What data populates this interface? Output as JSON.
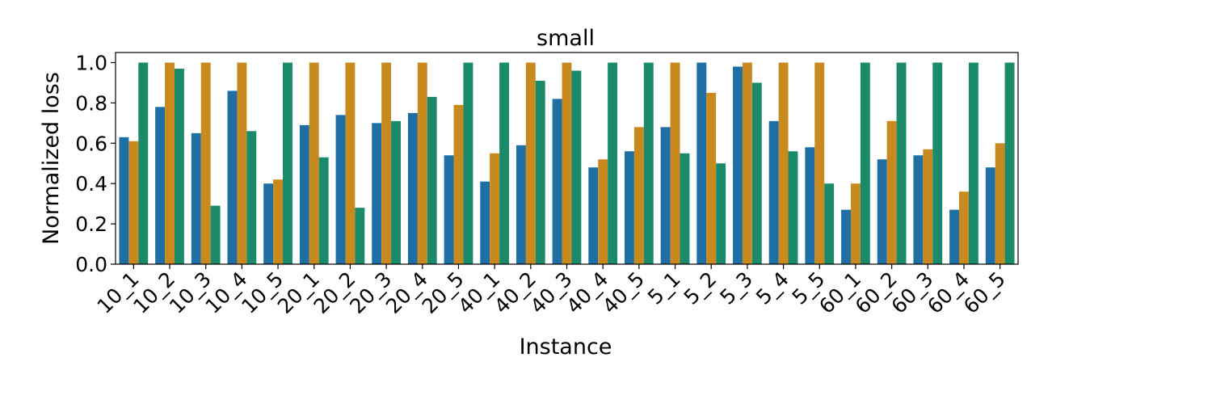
{
  "chart_data": {
    "type": "bar",
    "title": "small",
    "xlabel": "Instance",
    "ylabel": "Normalized loss",
    "ylim": [
      0,
      1.05
    ],
    "yticks": [
      "0.0",
      "0.2",
      "0.4",
      "0.6",
      "0.8",
      "1.0"
    ],
    "legend": "none",
    "grid": false,
    "categories": [
      "10_1",
      "10_2",
      "10_3",
      "10_4",
      "10_5",
      "20_1",
      "20_2",
      "20_3",
      "20_4",
      "20_5",
      "40_1",
      "40_2",
      "40_3",
      "40_4",
      "40_5",
      "5_1",
      "5_2",
      "5_3",
      "5_4",
      "5_5",
      "60_1",
      "60_2",
      "60_3",
      "60_4",
      "60_5"
    ],
    "series": [
      {
        "color": "#1f6fa5",
        "values": [
          0.63,
          0.78,
          0.65,
          0.86,
          0.4,
          0.69,
          0.74,
          0.7,
          0.75,
          0.54,
          0.41,
          0.59,
          0.82,
          0.48,
          0.56,
          0.68,
          1.0,
          0.98,
          0.71,
          0.58,
          0.27,
          0.52,
          0.54,
          0.27,
          0.48
        ]
      },
      {
        "color": "#c88a1f",
        "values": [
          0.61,
          1.0,
          1.0,
          1.0,
          0.42,
          1.0,
          1.0,
          1.0,
          1.0,
          0.79,
          0.55,
          1.0,
          1.0,
          0.52,
          0.68,
          1.0,
          0.85,
          1.0,
          1.0,
          1.0,
          0.4,
          0.71,
          0.57,
          0.36,
          0.6
        ]
      },
      {
        "color": "#1a8a6b",
        "values": [
          1.0,
          0.97,
          0.29,
          0.66,
          1.0,
          0.53,
          0.28,
          0.71,
          0.83,
          1.0,
          1.0,
          0.91,
          0.96,
          1.0,
          1.0,
          0.55,
          0.5,
          0.9,
          0.56,
          0.4,
          1.0,
          1.0,
          1.0,
          1.0,
          1.0
        ]
      }
    ]
  }
}
